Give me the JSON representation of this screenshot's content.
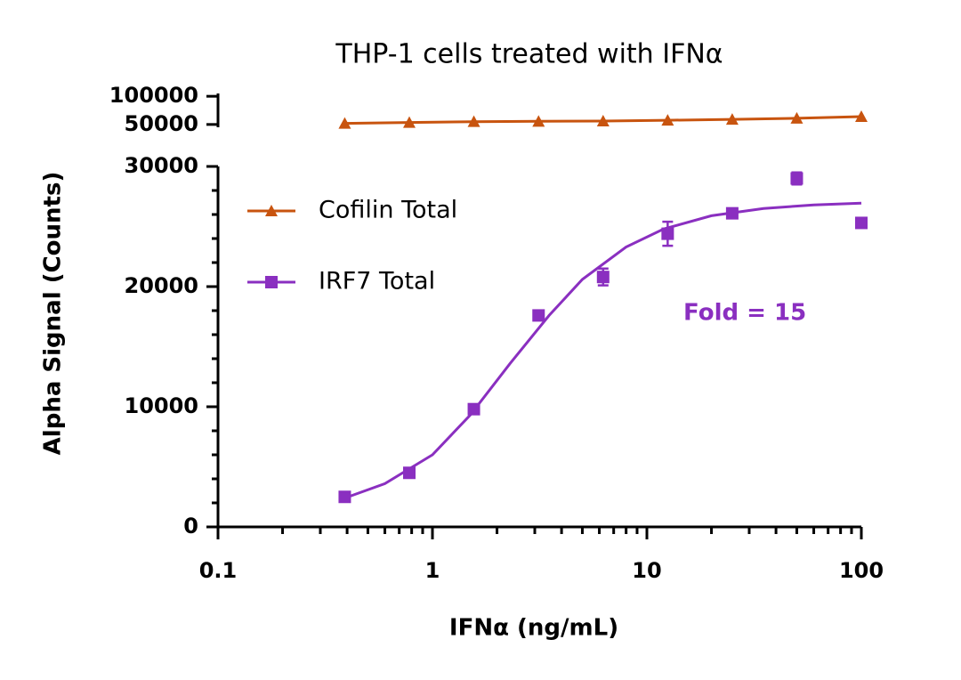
{
  "chart_data": {
    "type": "scatter",
    "title": "THP-1 cells treated with IFNα",
    "x_label": "IFNα (ng/mL)",
    "y_label": "Alpha Signal (Counts)",
    "x_scale": "log",
    "xlim": [
      0.1,
      100
    ],
    "xticks": [
      0.1,
      1,
      10,
      100
    ],
    "xminorticks": [
      0.2,
      0.3,
      0.4,
      0.5,
      0.6,
      0.7,
      0.8,
      0.9,
      2,
      3,
      4,
      5,
      6,
      7,
      8,
      9,
      20,
      30,
      40,
      50,
      60,
      70,
      80,
      90
    ],
    "ylim": [
      0,
      30000
    ],
    "yticks": [
      0,
      10000,
      20000,
      30000
    ],
    "yminorticks": [
      2000,
      4000,
      6000,
      8000,
      12000,
      14000,
      16000,
      18000,
      22000,
      24000,
      26000,
      28000
    ],
    "ylim_upper": [
      45000,
      105000
    ],
    "yticks_upper": [
      50000,
      100000
    ],
    "legend": "upper left",
    "annotation": "Fold = 15",
    "x": [
      0.39,
      0.78,
      1.56,
      3.125,
      6.25,
      12.5,
      25,
      50,
      100
    ],
    "series": [
      {
        "name": "Cofilin Total",
        "color": "#c8540f",
        "marker": "triangle",
        "axis": "upper",
        "values": [
          52000,
          53500,
          55000,
          55500,
          56000,
          57500,
          59000,
          61000,
          64000
        ]
      },
      {
        "name": "IRF7 Total",
        "color": "#8a2fc0",
        "marker": "square",
        "axis": "lower",
        "values": [
          2500,
          4500,
          9800,
          17600,
          20800,
          24400,
          26100,
          29000,
          25300
        ],
        "errors": [
          null,
          null,
          400,
          null,
          700,
          1000,
          400,
          500,
          null
        ],
        "fit": {
          "x": [
            0.39,
            0.6,
            1,
            1.5,
            2.3,
            3.5,
            5,
            8,
            12,
            20,
            35,
            60,
            100
          ],
          "values": [
            2400,
            3600,
            6000,
            9300,
            13600,
            17600,
            20600,
            23300,
            24800,
            25900,
            26500,
            26800,
            26950
          ]
        }
      }
    ]
  }
}
